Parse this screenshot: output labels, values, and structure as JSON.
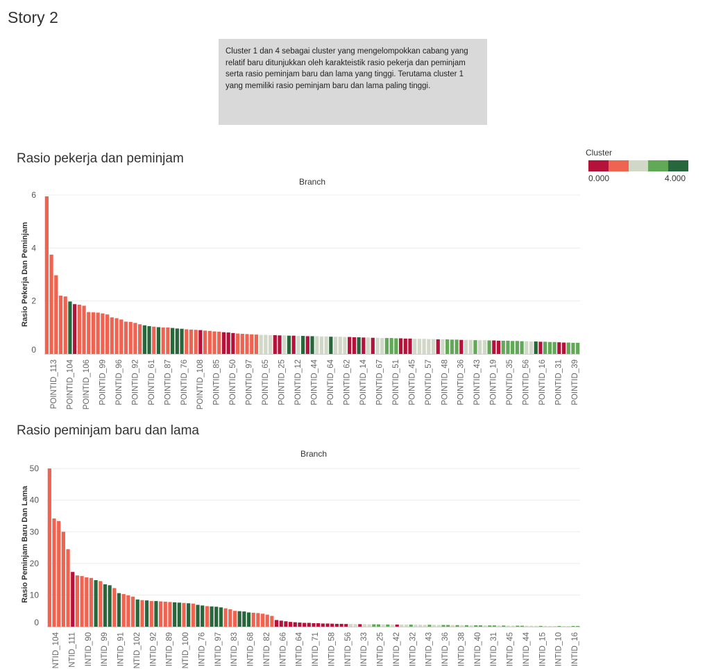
{
  "story_title": "Story 2",
  "caption": "Cluster 1 dan 4 sebagai cluster yang mengelompokkan cabang yang relatif baru ditunjukkan oleh karakteistik rasio pekerja dan peminjam serta rasio peminjam baru dan lama yang tinggi. Terutama cluster 1 yang memiliki rasio peminjam baru dan lama paling tinggi.",
  "legend": {
    "title": "Cluster",
    "min_label": "0.000",
    "max_label": "4.000",
    "colors": [
      "#b5123b",
      "#ef6351",
      "#d1d8c7",
      "#62a957",
      "#27673b"
    ]
  },
  "chart_data": [
    {
      "type": "bar",
      "title": "Rasio pekerja dan peminjam",
      "column_header": "Branch",
      "ylabel": "Rasio Pekerja Dan Peminjam",
      "ylim": [
        0,
        6
      ],
      "yticks": [
        0,
        2,
        4,
        6
      ],
      "grid": true,
      "tick_labels": [
        "POINTID_113",
        "POINTID_104",
        "POINTID_106",
        "POINTID_99",
        "POINTID_96",
        "POINTID_92",
        "POINTID_61",
        "POINTID_87",
        "POINTID_76",
        "POINTID_108",
        "POINTID_85",
        "POINTID_50",
        "POINTID_97",
        "POINTID_65",
        "POINTID_25",
        "POINTID_12",
        "POINTID_44",
        "POINTID_64",
        "POINTID_62",
        "POINTID_14",
        "POINTID_67",
        "POINTID_51",
        "POINTID_45",
        "POINTID_57",
        "POINTID_48",
        "POINTID_36",
        "POINTID_43",
        "POINTID_19",
        "POINTID_35",
        "POINTID_56",
        "POINTID_16",
        "POINTID_31",
        "POINTID_39"
      ],
      "values": [
        5.95,
        3.75,
        2.97,
        2.2,
        2.17,
        1.98,
        1.88,
        1.86,
        1.82,
        1.58,
        1.57,
        1.56,
        1.53,
        1.49,
        1.38,
        1.35,
        1.3,
        1.22,
        1.21,
        1.17,
        1.12,
        1.08,
        1.05,
        1.03,
        1.01,
        1.0,
        1.0,
        0.98,
        0.96,
        0.95,
        0.93,
        0.92,
        0.91,
        0.9,
        0.88,
        0.87,
        0.85,
        0.84,
        0.82,
        0.81,
        0.79,
        0.77,
        0.76,
        0.75,
        0.74,
        0.73,
        0.72,
        0.72,
        0.71,
        0.71,
        0.7,
        0.7,
        0.69,
        0.69,
        0.68,
        0.68,
        0.67,
        0.67,
        0.67,
        0.66,
        0.66,
        0.65,
        0.65,
        0.65,
        0.64,
        0.64,
        0.63,
        0.63,
        0.62,
        0.62,
        0.61,
        0.61,
        0.6,
        0.6,
        0.6,
        0.59,
        0.59,
        0.58,
        0.58,
        0.57,
        0.57,
        0.57,
        0.56,
        0.56,
        0.55,
        0.55,
        0.55,
        0.54,
        0.54,
        0.53,
        0.53,
        0.53,
        0.52,
        0.52,
        0.52,
        0.51,
        0.51,
        0.5,
        0.5,
        0.5,
        0.49,
        0.49,
        0.48,
        0.48,
        0.47,
        0.47,
        0.46,
        0.46,
        0.45,
        0.45,
        0.44,
        0.43,
        0.43,
        0.42,
        0.42
      ],
      "clusters": [
        1,
        1,
        1,
        1,
        1,
        4,
        0,
        1,
        1,
        1,
        1,
        1,
        1,
        1,
        1,
        1,
        1,
        1,
        1,
        1,
        1,
        4,
        4,
        1,
        4,
        1,
        1,
        4,
        4,
        4,
        1,
        1,
        1,
        0,
        1,
        1,
        1,
        1,
        0,
        0,
        0,
        1,
        1,
        1,
        1,
        1,
        2,
        2,
        2,
        0,
        0,
        2,
        4,
        0,
        2,
        4,
        0,
        4,
        2,
        2,
        2,
        4,
        2,
        2,
        2,
        0,
        0,
        4,
        0,
        2,
        0,
        2,
        2,
        3,
        3,
        3,
        0,
        0,
        0,
        2,
        2,
        2,
        2,
        2,
        0,
        2,
        3,
        3,
        3,
        0,
        2,
        2,
        3,
        2,
        2,
        3,
        0,
        0,
        3,
        3,
        3,
        3,
        3,
        2,
        2,
        4,
        0,
        3,
        3,
        3,
        0,
        0,
        3,
        3,
        3
      ]
    },
    {
      "type": "bar",
      "title": "Rasio peminjam baru dan lama",
      "column_header": "Branch",
      "ylabel": "Rasio Peminjam Baru Dan Lama",
      "ylim": [
        0,
        52
      ],
      "yticks": [
        0,
        10,
        20,
        30,
        40,
        50
      ],
      "grid": true,
      "tick_labels": [
        "NTID_104",
        "NTID_111",
        "INTID_90",
        "INTID_99",
        "INTID_91",
        "INTID_102",
        "INTID_92",
        "INTID_89",
        "INTID_100",
        "INTID_76",
        "INTID_97",
        "INTID_83",
        "INTID_68",
        "INTID_82",
        "INTID_66",
        "INTID_64",
        "INTID_71",
        "INTID_58",
        "INTID_56",
        "INTID_33",
        "INTID_25",
        "INTID_42",
        "INTID_32",
        "INTID_43",
        "INTID_36",
        "INTID_38",
        "INTID_40",
        "INTID_31",
        "INTID_45",
        "INTID_44",
        "INTID_15",
        "INTID_10",
        "INTID_16"
      ],
      "values": [
        50,
        34.2,
        33.4,
        30,
        24.5,
        17.3,
        16.2,
        16,
        15.6,
        15.4,
        14.7,
        14.4,
        13.4,
        13.1,
        12.2,
        10.6,
        10.3,
        9.9,
        9.5,
        8.6,
        8.4,
        8.3,
        8.1,
        8.1,
        8.0,
        7.9,
        7.8,
        7.7,
        7.6,
        7.5,
        7.4,
        7.3,
        6.9,
        6.7,
        6.5,
        6.4,
        6.3,
        6.1,
        5.8,
        5.5,
        5.0,
        4.9,
        4.8,
        4.5,
        4.4,
        4.3,
        4.1,
        3.8,
        3.4,
        2.1,
        1.9,
        1.7,
        1.5,
        1.4,
        1.3,
        1.2,
        1.2,
        1.1,
        1.1,
        1.0,
        1.0,
        0.95,
        0.9,
        0.9,
        0.85,
        0.85,
        0.8,
        0.8,
        0.78,
        0.76,
        0.75,
        0.74,
        0.72,
        0.7,
        0.7,
        0.68,
        0.66,
        0.65,
        0.64,
        0.63,
        0.62,
        0.6,
        0.6,
        0.58,
        0.56,
        0.55,
        0.54,
        0.52,
        0.5,
        0.5,
        0.48,
        0.46,
        0.45,
        0.44,
        0.42,
        0.4,
        0.4,
        0.38,
        0.36,
        0.35,
        0.34,
        0.32,
        0.3,
        0.3,
        0.28,
        0.26,
        0.25,
        0.24,
        0.22,
        0.2,
        0.2,
        0.18,
        0.16,
        0.15,
        0.14
      ],
      "clusters": [
        1,
        1,
        1,
        1,
        1,
        0,
        1,
        1,
        1,
        1,
        4,
        1,
        4,
        4,
        1,
        4,
        1,
        1,
        1,
        4,
        1,
        4,
        1,
        4,
        1,
        1,
        1,
        4,
        4,
        1,
        4,
        1,
        4,
        4,
        1,
        4,
        4,
        4,
        1,
        1,
        1,
        4,
        4,
        4,
        1,
        1,
        1,
        1,
        1,
        0,
        0,
        0,
        0,
        0,
        0,
        0,
        0,
        0,
        0,
        0,
        0,
        0,
        0,
        0,
        0,
        2,
        2,
        0,
        2,
        2,
        3,
        3,
        2,
        3,
        2,
        0,
        2,
        2,
        3,
        2,
        2,
        2,
        3,
        2,
        2,
        3,
        3,
        2,
        3,
        2,
        3,
        2,
        3,
        3,
        2,
        3,
        3,
        2,
        3,
        2,
        2,
        3,
        3,
        2,
        2,
        2,
        3,
        2,
        2,
        2,
        3,
        2,
        2,
        3,
        3
      ]
    }
  ]
}
